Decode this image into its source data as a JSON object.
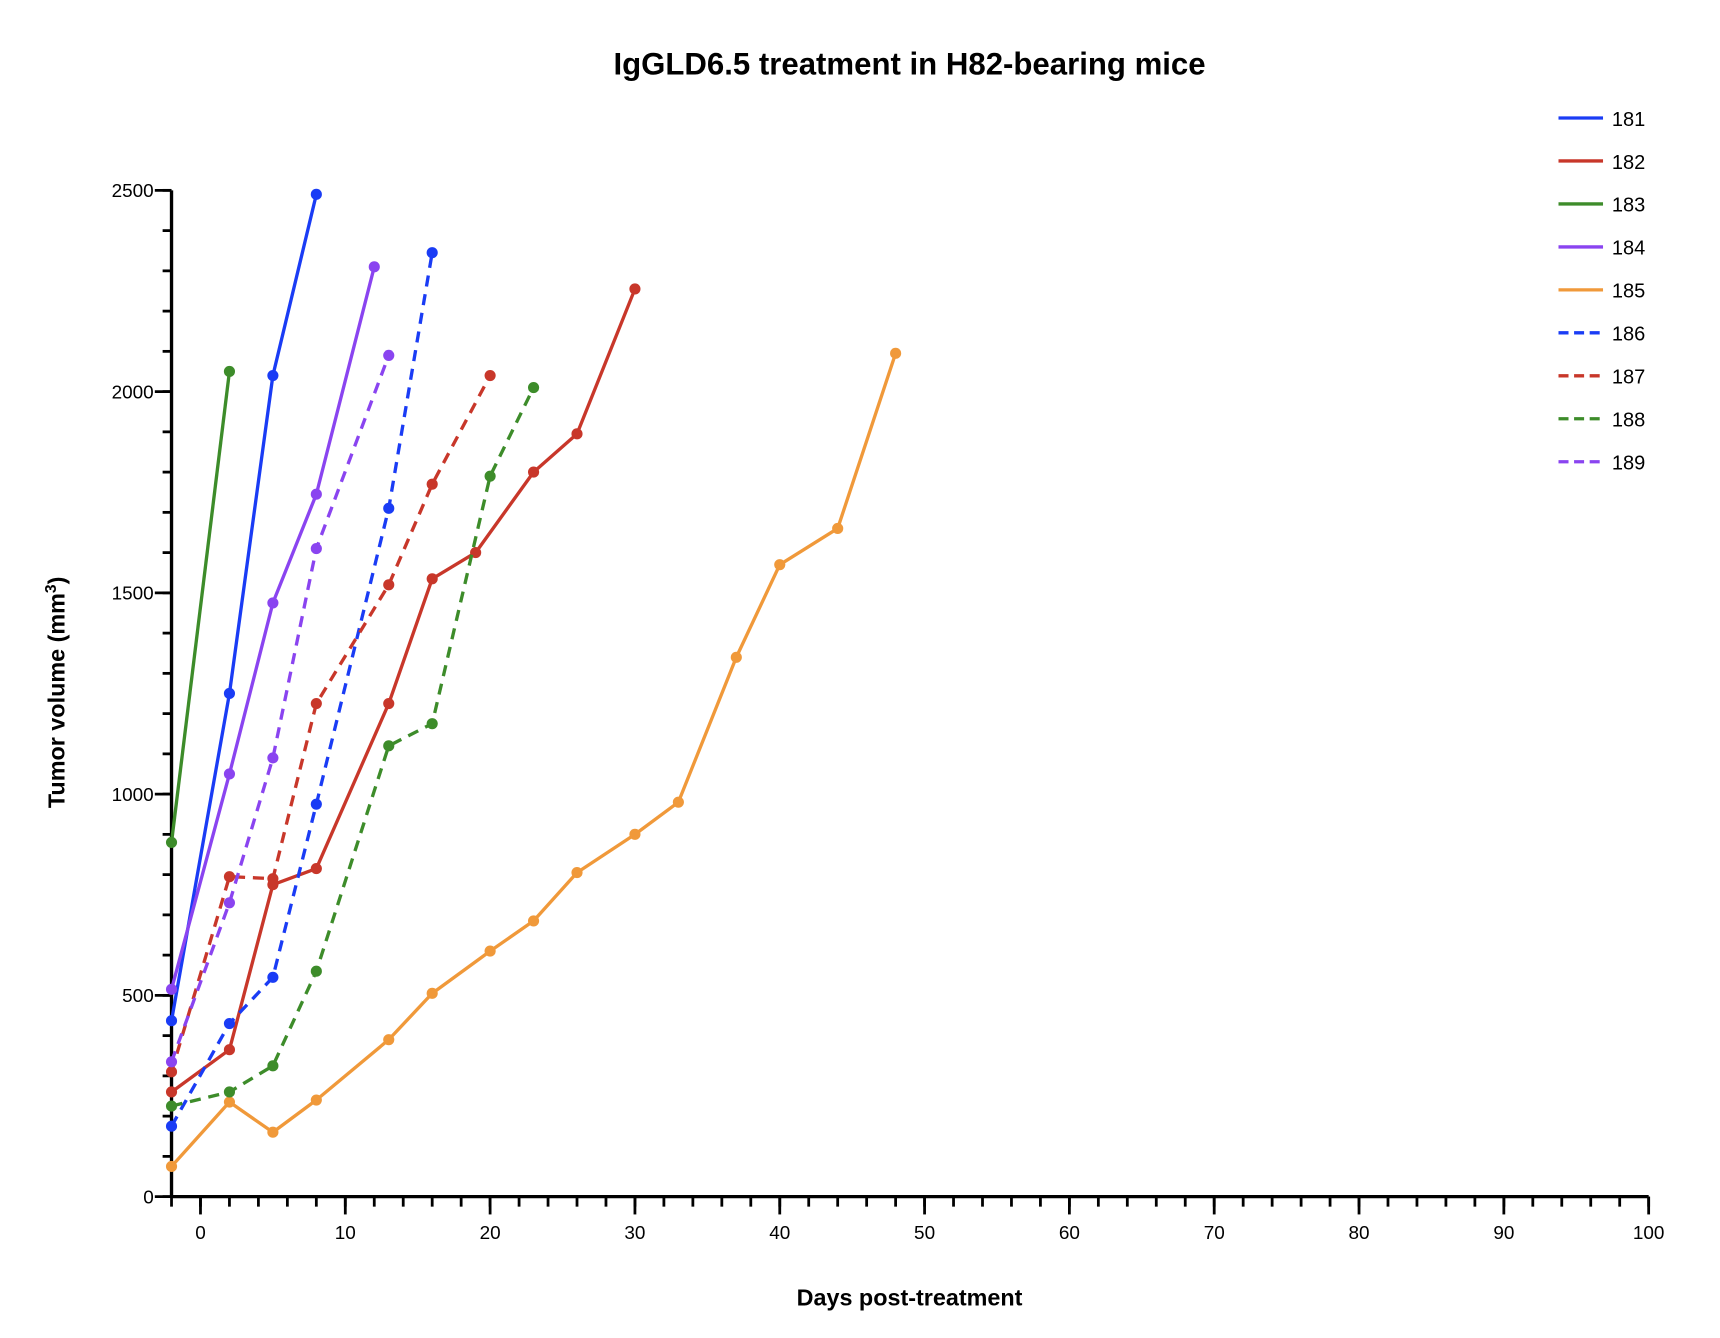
{
  "chart_data": {
    "type": "line",
    "title": "IgGLD6.5 treatment in H82-bearing mice",
    "xlabel": "Days post-treatment",
    "ylabel": "Tumor volume (mm³)",
    "xlim": [
      -2,
      100
    ],
    "ylim": [
      0,
      2500
    ],
    "xticks": [
      0,
      10,
      20,
      30,
      40,
      50,
      60,
      70,
      80,
      90,
      100
    ],
    "yticks": [
      0,
      500,
      1000,
      1500,
      2000,
      2500
    ],
    "grid": false,
    "legend_position": "top-right",
    "series": [
      {
        "name": "181",
        "color": "#1a3cf5",
        "dashed": false,
        "x": [
          -2,
          2,
          5,
          8
        ],
        "y": [
          437,
          1250,
          2040,
          2490
        ]
      },
      {
        "name": "182",
        "color": "#c8372a",
        "dashed": false,
        "x": [
          -2,
          2,
          5,
          8,
          13,
          16,
          19,
          23,
          26,
          30
        ],
        "y": [
          260,
          365,
          775,
          815,
          1225,
          1535,
          1600,
          1800,
          1895,
          2255
        ]
      },
      {
        "name": "183",
        "color": "#3d8c2a",
        "dashed": false,
        "x": [
          -2,
          2
        ],
        "y": [
          880,
          2050
        ]
      },
      {
        "name": "184",
        "color": "#8a44f0",
        "dashed": false,
        "x": [
          -2,
          2,
          5,
          8,
          12
        ],
        "y": [
          515,
          1050,
          1475,
          1745,
          2310
        ]
      },
      {
        "name": "185",
        "color": "#f0993a",
        "dashed": false,
        "x": [
          -2,
          2,
          5,
          8,
          13,
          16,
          20,
          23,
          26,
          30,
          33,
          37,
          40,
          44,
          48
        ],
        "y": [
          75,
          235,
          160,
          240,
          390,
          505,
          610,
          685,
          805,
          900,
          980,
          1340,
          1570,
          1660,
          2095
        ]
      },
      {
        "name": "186",
        "color": "#1a3cf5",
        "dashed": true,
        "x": [
          -2,
          2,
          5,
          8,
          13,
          16
        ],
        "y": [
          175,
          430,
          545,
          975,
          1710,
          2345
        ]
      },
      {
        "name": "187",
        "color": "#c8372a",
        "dashed": true,
        "x": [
          -2,
          2,
          5,
          8,
          13,
          16,
          20
        ],
        "y": [
          310,
          795,
          790,
          1225,
          1520,
          1770,
          2040
        ]
      },
      {
        "name": "188",
        "color": "#3d8c2a",
        "dashed": true,
        "x": [
          -2,
          2,
          5,
          8,
          13,
          16,
          20,
          23
        ],
        "y": [
          225,
          260,
          325,
          560,
          1120,
          1175,
          1790,
          2010
        ]
      },
      {
        "name": "189",
        "color": "#8a44f0",
        "dashed": true,
        "x": [
          -2,
          2,
          5,
          8,
          13
        ],
        "y": [
          335,
          730,
          1090,
          1610,
          2090
        ]
      }
    ]
  }
}
